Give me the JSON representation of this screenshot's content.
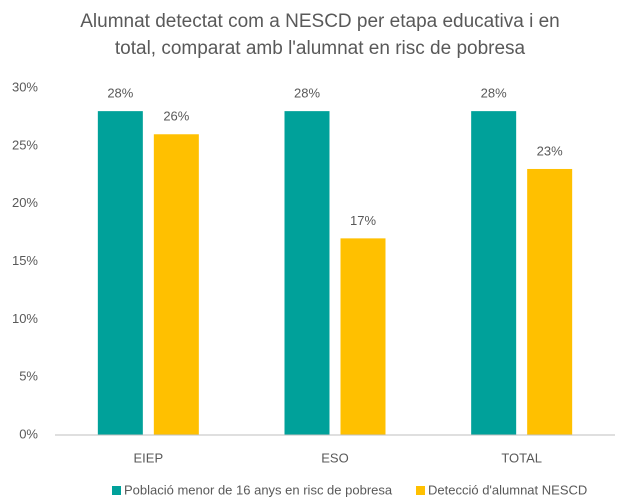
{
  "chart_data": {
    "type": "bar",
    "title": [
      "Alumnat detectat com a NESCD per etapa educativa i en",
      "total, comparat amb l'alumnat en risc de pobresa"
    ],
    "categories": [
      "EIEP",
      "ESO",
      "TOTAL"
    ],
    "series": [
      {
        "name": "Població menor de 16 anys en risc de pobresa",
        "color": "#00A19A",
        "values": [
          28,
          28,
          28
        ],
        "value_labels": [
          "28%",
          "28%",
          "28%"
        ]
      },
      {
        "name": "Detecció d'alumnat NESCD",
        "color": "#FFC000",
        "values": [
          26,
          17,
          23
        ],
        "value_labels": [
          "26%",
          "17%",
          "23%"
        ]
      }
    ],
    "ylim": [
      0,
      30
    ],
    "yticks": [
      {
        "value": 0,
        "label": "0%"
      },
      {
        "value": 5,
        "label": "5%"
      },
      {
        "value": 10,
        "label": "10%"
      },
      {
        "value": 15,
        "label": "15%"
      },
      {
        "value": 20,
        "label": "20%"
      },
      {
        "value": 25,
        "label": "25%"
      },
      {
        "value": 30,
        "label": "30%"
      }
    ],
    "grid": false,
    "legend": "bottom"
  }
}
